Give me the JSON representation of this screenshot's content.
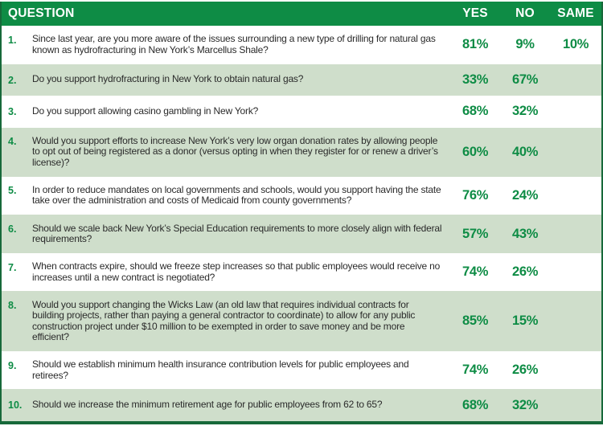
{
  "title": "New York poll results table",
  "colors": {
    "header_green": "#0e8c45",
    "row_shade_green": "#cfdecb",
    "border_green": "#17693a",
    "value_green": "#0e8c45",
    "text_dark": "#2a2a2a"
  },
  "chart_data": {
    "type": "table",
    "columns": [
      "QUESTION",
      "YES",
      "NO",
      "SAME"
    ],
    "rows": [
      {
        "number": "1.",
        "question": "Since last year, are you more aware of the issues surrounding a new type of drilling for natural gas known as hydrofracturing in New York’s Marcellus Shale?",
        "yes": "81%",
        "no": "9%",
        "same": "10%"
      },
      {
        "number": "2.",
        "question": "Do you support hydrofracturing in New York to obtain natural gas?",
        "yes": "33%",
        "no": "67%",
        "same": ""
      },
      {
        "number": "3.",
        "question": "Do you support allowing casino gambling in New York?",
        "yes": "68%",
        "no": "32%",
        "same": ""
      },
      {
        "number": "4.",
        "question": "Would you support efforts to increase New York’s very low organ donation rates by allowing people to opt out of being registered as a donor (versus opting in when they register for or renew a driver’s license)?",
        "yes": "60%",
        "no": "40%",
        "same": ""
      },
      {
        "number": "5.",
        "question": "In order to reduce mandates on local governments and schools, would you support having the state take over the administration and costs of Medicaid from county governments?",
        "yes": "76%",
        "no": "24%",
        "same": ""
      },
      {
        "number": "6.",
        "question": "Should we scale back New York’s Special Education requirements to more closely align with federal requirements?",
        "yes": "57%",
        "no": "43%",
        "same": ""
      },
      {
        "number": "7.",
        "question": "When contracts expire, should we freeze step increases so that public employees would receive no increases until a new contract is negotiated?",
        "yes": "74%",
        "no": "26%",
        "same": ""
      },
      {
        "number": "8.",
        "question": "Would you support changing the Wicks Law (an old law that requires individual contracts for building projects, rather than paying a general contractor to coordinate) to allow for any public construction project under $10 million to be exempted in order to save money and be more efficient?",
        "yes": "85%",
        "no": "15%",
        "same": ""
      },
      {
        "number": "9.",
        "question": "Should we establish minimum health insurance contribution levels for public employees and retirees?",
        "yes": "74%",
        "no": "26%",
        "same": ""
      },
      {
        "number": "10.",
        "question": "Should we increase the minimum retirement age for public employees from 62 to 65?",
        "yes": "68%",
        "no": "32%",
        "same": ""
      }
    ]
  }
}
